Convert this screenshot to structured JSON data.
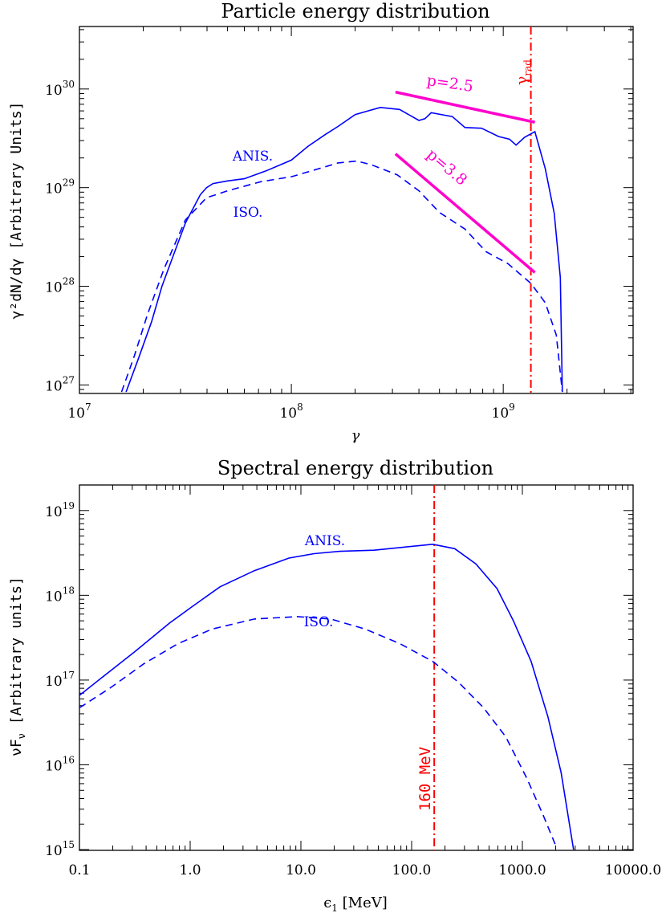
{
  "chart_data": [
    {
      "type": "line",
      "title": "Particle energy distribution",
      "xlabel": "γ",
      "ylabel": "γ²dN/dγ [Arbitrary Units]",
      "xscale": "log",
      "yscale": "log",
      "xlim": [
        10000000.0,
        4100000000.0
      ],
      "ylim": [
        8.2e+26,
        4.3e+30
      ],
      "xticks": [
        {
          "v": 10000000.0,
          "base": "10",
          "exp": "7"
        },
        {
          "v": 100000000.0,
          "base": "10",
          "exp": "8"
        },
        {
          "v": 1000000000.0,
          "base": "10",
          "exp": "9"
        }
      ],
      "yticks": [
        {
          "v": 1e+27,
          "base": "10",
          "exp": "27"
        },
        {
          "v": 1e+28,
          "base": "10",
          "exp": "28"
        },
        {
          "v": 1e+29,
          "base": "10",
          "exp": "29"
        },
        {
          "v": 1e+30,
          "base": "10",
          "exp": "30"
        }
      ],
      "series": [
        {
          "name": "ANIS.",
          "style": "solid",
          "color": "#0000ff",
          "x": [
            16600000.0,
            19000000.0,
            21900000.0,
            24500000.0,
            27500000.0,
            31600000.0,
            37200000.0,
            39800000.0,
            42700000.0,
            50000000.0,
            60000000.0,
            76000000.0,
            100000000.0,
            120000000.0,
            145000000.0,
            166000000.0,
            200000000.0,
            230000000.0,
            263000000.0,
            324000000.0,
            400000000.0,
            427000000.0,
            457000000.0,
            575000000.0,
            660000000.0,
            790000000.0,
            950000000.0,
            1070000000.0,
            1150000000.0,
            1260000000.0,
            1410000000.0,
            1580000000.0,
            1740000000.0,
            1860000000.0,
            1900000000.0
          ],
          "y": [
            8.5e+26,
            1.86e+27,
            4.37e+27,
            1e+28,
            1.95e+28,
            4.37e+28,
            8.5e+28,
            1e+29,
            1.1e+29,
            1.17e+29,
            1.23e+29,
            1.48e+29,
            1.9e+29,
            2.63e+29,
            3.47e+29,
            4.17e+29,
            5.5e+29,
            6e+29,
            6.5e+29,
            6.2e+29,
            4.8e+29,
            5e+29,
            5.75e+29,
            5.25e+29,
            4.07e+29,
            4e+29,
            3.3e+29,
            3.1e+29,
            2.7e+29,
            3.24e+29,
            3.7e+29,
            1.55e+29,
            5.5e+28,
            1.23e+28,
            8.5e+26
          ]
        },
        {
          "name": "ISO.",
          "style": "dashed",
          "color": "#0000ff",
          "x": [
            15800000.0,
            18200000.0,
            20900000.0,
            25000000.0,
            31600000.0,
            39800000.0,
            50000000.0,
            72000000.0,
            100000000.0,
            138000000.0,
            166000000.0,
            204000000.0,
            240000000.0,
            316000000.0,
            400000000.0,
            500000000.0,
            660000000.0,
            830000000.0,
            1050000000.0,
            1350000000.0,
            1580000000.0,
            1780000000.0,
            1900000000.0
          ],
          "y": [
            8.5e+26,
            2e+27,
            5.1e+27,
            1.48e+28,
            4.7e+28,
            7.9e+28,
            9.3e+28,
            1.15e+29,
            1.29e+29,
            1.58e+29,
            1.78e+29,
            1.86e+29,
            1.7e+29,
            1.35e+29,
            9.3e+28,
            5.6e+28,
            3.8e+28,
            2.24e+28,
            1.7e+28,
            1.07e+28,
            6.8e+27,
            3.2e+27,
            8.5e+26
          ]
        }
      ],
      "fits": [
        {
          "label": "p=2.5",
          "color": "#ff00cc",
          "x": [
            310000000.0,
            1410000000.0
          ],
          "y": [
            9.3e+29,
            4.6e+29
          ]
        },
        {
          "label": "p=3.8",
          "color": "#ff00cc",
          "x": [
            310000000.0,
            1410000000.0
          ],
          "y": [
            2.2e+29,
            1.38e+28
          ]
        }
      ],
      "vline": {
        "x": 1350000000.0,
        "color": "#ff0000",
        "style": "dash-dot",
        "label": "γ",
        "label_sub": "rad"
      }
    },
    {
      "type": "line",
      "title": "Spectral energy distribution",
      "xlabel": "ϵ",
      "xlabel_sub": "1",
      "xlabel_unit": " [MeV]",
      "ylabel": "νF",
      "ylabel_sub": "ν",
      "ylabel_unit": " [Arbitrary units]",
      "xscale": "log",
      "yscale": "log",
      "xlim": [
        0.1,
        10000
      ],
      "ylim": [
        980000000000000.0,
        2e+19
      ],
      "xticks": [
        {
          "v": 0.1,
          "label": "0.1"
        },
        {
          "v": 1,
          "label": "1.0"
        },
        {
          "v": 10,
          "label": "10.0"
        },
        {
          "v": 100,
          "label": "100.0"
        },
        {
          "v": 1000,
          "label": "1000.0"
        },
        {
          "v": 10000,
          "label": "10000.0"
        }
      ],
      "yticks": [
        {
          "v": 1000000000000000.0,
          "base": "10",
          "exp": "15"
        },
        {
          "v": 1e+16,
          "base": "10",
          "exp": "16"
        },
        {
          "v": 1e+17,
          "base": "10",
          "exp": "17"
        },
        {
          "v": 1e+18,
          "base": "10",
          "exp": "18"
        },
        {
          "v": 1e+19,
          "base": "10",
          "exp": "19"
        }
      ],
      "series": [
        {
          "name": "ANIS.",
          "style": "solid",
          "color": "#0000ff",
          "x": [
            0.1,
            0.174,
            0.32,
            0.65,
            1.02,
            1.86,
            3.8,
            7.8,
            13.2,
            22.4,
            45.7,
            85,
            155,
            245,
            380,
            590,
            830,
            1200,
            1700,
            2240,
            2900
          ],
          "y": [
            6.6e+16,
            1.17e+17,
            2.19e+17,
            4.7e+17,
            7.2e+17,
            1.26e+18,
            1.95e+18,
            2.75e+18,
            3.1e+18,
            3.3e+18,
            3.4e+18,
            3.7e+18,
            4e+18,
            3.55e+18,
            2.35e+18,
            1.2e+18,
            5e+17,
            1.66e+17,
            3.7e+16,
            8100000000000000.0,
            1000000000000000.0
          ]
        },
        {
          "name": "ISO.",
          "style": "dashed",
          "color": "#0000ff",
          "x": [
            0.1,
            0.19,
            0.38,
            0.78,
            1.58,
            3.8,
            9.3,
            18.6,
            38,
            78,
            155,
            263,
            447,
            708,
            1100,
            1550,
            2040
          ],
          "y": [
            4.7e+16,
            8.1e+16,
            1.55e+17,
            2.7e+17,
            4e+17,
            5.25e+17,
            5.6e+17,
            5.25e+17,
            4e+17,
            2.7e+17,
            1.66e+17,
            9.5e+16,
            4.7e+16,
            2.14e+16,
            6900000000000000.0,
            2500000000000000.0,
            1050000000000000.0
          ]
        }
      ],
      "vline": {
        "x": 160,
        "color": "#ff0000",
        "style": "dash-dot",
        "label": "160 MeV"
      }
    }
  ]
}
